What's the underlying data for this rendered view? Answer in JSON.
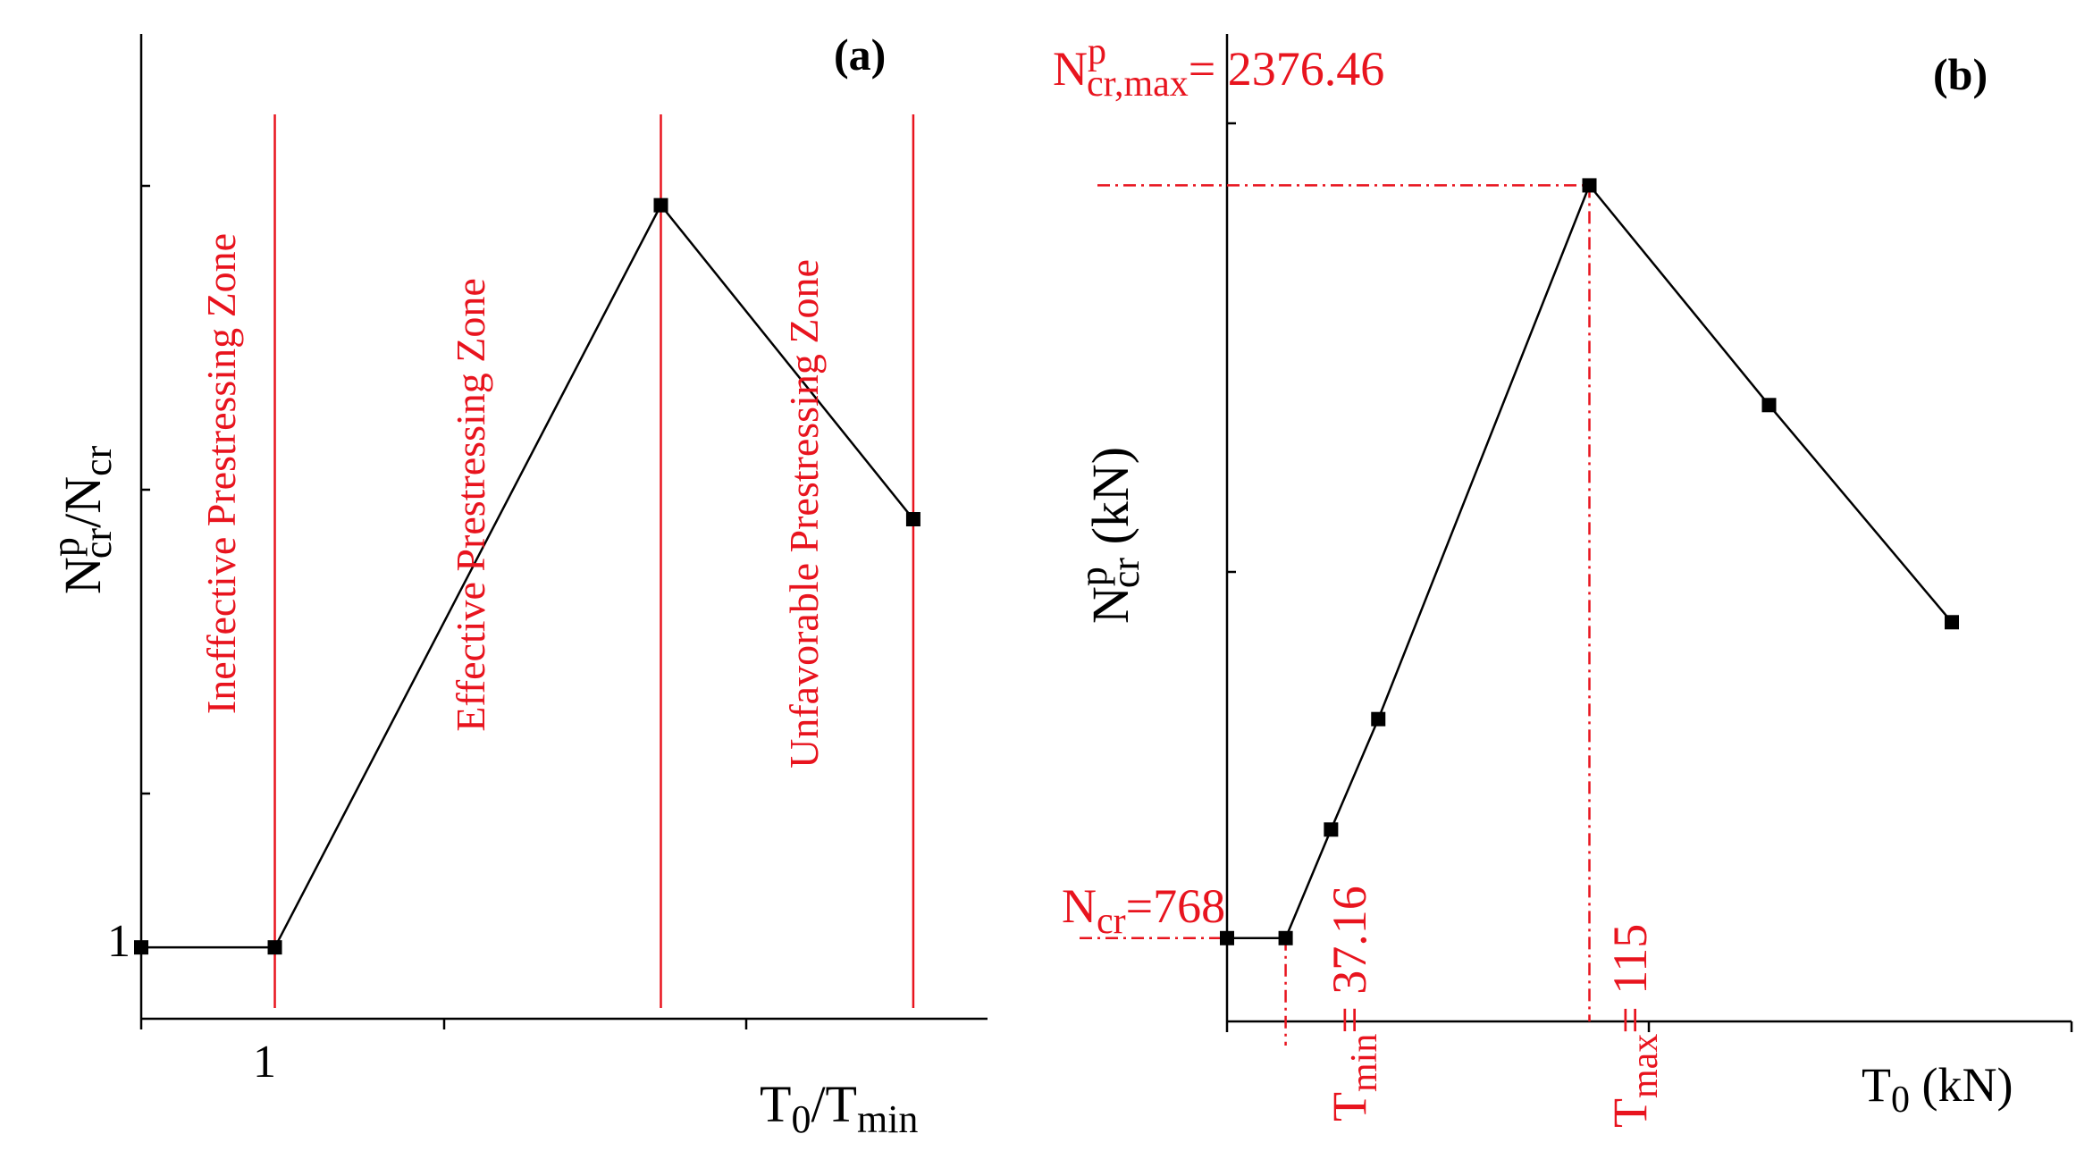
{
  "colors": {
    "axis": "#000000",
    "line": "#000000",
    "annotation": "#e8141e"
  },
  "chart_data": [
    {
      "panel": "(a)",
      "type": "line",
      "ylabel": {
        "main": "N",
        "sup": "p",
        "sub": "cr",
        "rest": "/N",
        "rest_sub": "cr"
      },
      "xlabel": {
        "main": "T",
        "sub": "0",
        "rest": "/T",
        "rest_sub": "min"
      },
      "x_tick_label": "1",
      "y_tick_label": "1",
      "x": [
        0.55,
        1.0,
        2.3,
        3.15
      ],
      "y": [
        1.0,
        1.0,
        3.6,
        2.5
      ],
      "xlim": [
        0.55,
        3.4
      ],
      "ylim": [
        0.75,
        4.2
      ],
      "zones": [
        {
          "label": "Ineffective Prestressing Zone",
          "x": 1.0
        },
        {
          "label": "Effective Prestressing Zone",
          "x": 2.3
        },
        {
          "label": "Unfavorable Prestressing Zone",
          "x": 3.15
        }
      ]
    },
    {
      "panel": "(b)",
      "type": "line",
      "ylabel": {
        "main": "N",
        "sup": "p",
        "sub": "cr",
        "rest": " (kN)"
      },
      "xlabel": {
        "main": "T",
        "sub": "0",
        "rest": " (kN)"
      },
      "x": [
        0,
        18.6,
        33,
        48,
        115,
        172,
        230
      ],
      "y": [
        768,
        768,
        1000,
        1236,
        2376.46,
        1907,
        1443
      ],
      "xlim": [
        0,
        268
      ],
      "ylim": [
        590,
        2700
      ],
      "annotations": {
        "ncr_max": {
          "main": "N",
          "sup": "p",
          "sub": "cr,max",
          "rest": "= 2376.46"
        },
        "ncr": {
          "main": "N",
          "sub": "cr",
          "rest": "=768"
        },
        "tmin": {
          "main": "T",
          "sub": "min",
          "rest": "= 37.16"
        },
        "tmax": {
          "main": "T",
          "sub": "max",
          "rest": "= 115"
        }
      }
    }
  ]
}
